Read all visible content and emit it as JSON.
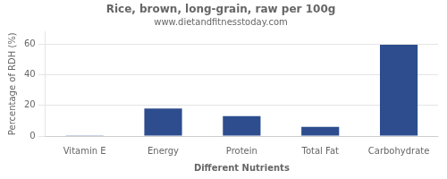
{
  "chart_data": {
    "type": "bar",
    "title": "Rice, brown, long-grain, raw per 100g",
    "subtitle": "www.dietandfitnesstoday.com",
    "xlabel": "Different Nutrients",
    "ylabel": "Percentage of RDH (%)",
    "categories": [
      "Vitamin E",
      "Energy",
      "Protein",
      "Total Fat",
      "Carbohydrate"
    ],
    "values": [
      0.5,
      18,
      13,
      6,
      59.5
    ],
    "color": "#2d4d8e",
    "ylim": [
      0,
      68
    ],
    "yticks": [
      0,
      20,
      40,
      60
    ],
    "grid": true
  }
}
